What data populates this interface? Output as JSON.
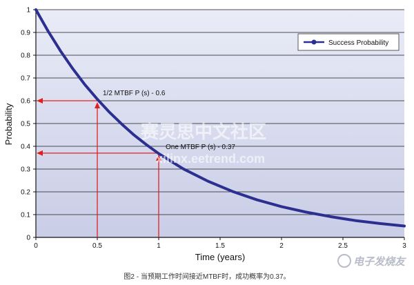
{
  "chart_data": {
    "type": "line",
    "xlabel": "Time (years)",
    "ylabel": "Probability",
    "xlim": [
      0,
      3
    ],
    "ylim": [
      0,
      1
    ],
    "x_ticks": [
      "0",
      "0.5",
      "1",
      "1.5",
      "2",
      "2.5",
      "3"
    ],
    "y_ticks": [
      "0",
      "0.1",
      "0.2",
      "0.3",
      "0.4",
      "0.5",
      "0.6",
      "0.7",
      "0.8",
      "0.9",
      "1"
    ],
    "grid": true,
    "legend_position": "top-right",
    "series": [
      {
        "name": "Success Probability",
        "color": "#2b2f8f",
        "x": [
          0,
          0.1,
          0.2,
          0.3,
          0.4,
          0.5,
          0.6,
          0.7,
          0.8,
          0.9,
          1.0,
          1.2,
          1.4,
          1.6,
          1.8,
          2.0,
          2.2,
          2.4,
          2.6,
          2.8,
          3.0
        ],
        "y": [
          1.0,
          0.905,
          0.819,
          0.741,
          0.67,
          0.607,
          0.549,
          0.497,
          0.449,
          0.407,
          0.368,
          0.301,
          0.247,
          0.202,
          0.165,
          0.135,
          0.111,
          0.091,
          0.074,
          0.061,
          0.05
        ]
      }
    ],
    "annotations": [
      {
        "text": "1/2 MTBF P (s) - 0.6",
        "x": 0.5,
        "y": 0.6
      },
      {
        "text": "One MTBF P (s) - 0.37",
        "x": 1.0,
        "y": 0.37
      }
    ],
    "annotation_color": "#e0201e"
  },
  "watermark": {
    "line1": "电子发烧友",
    "line2": "xilinx.eetrend.com",
    "line3": "赛灵思中文社区",
    "logo_text": "电子发烧友"
  },
  "caption": "图2 - 当预期工作时间接近MTBF时，成功概率为0.37。"
}
